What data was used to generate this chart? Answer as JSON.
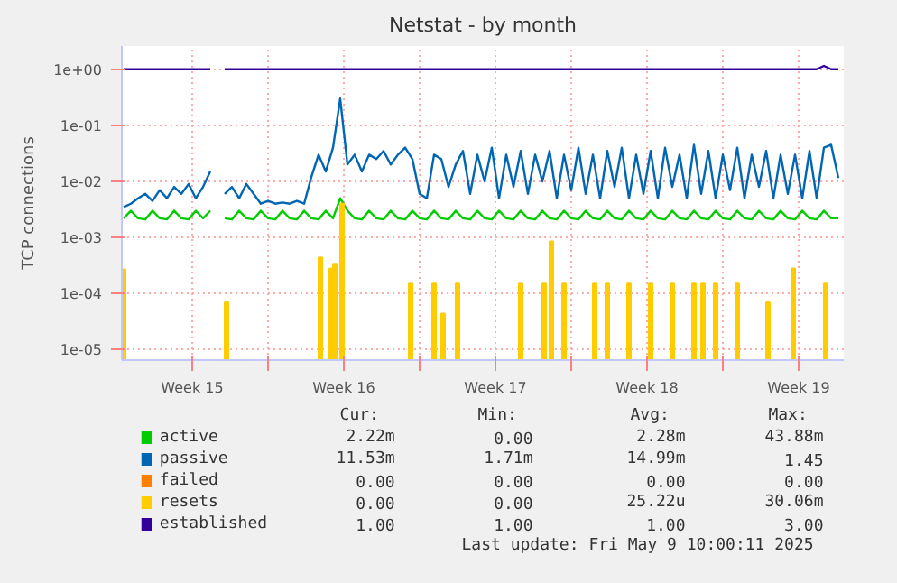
{
  "chart_data": {
    "type": "line",
    "title": "Netstat - by month",
    "ylabel": "TCP connections",
    "log": true,
    "grid": true,
    "legend": "bottom",
    "xlim": [
      "2025-04-06T06:00",
      "2025-05-09T14:00"
    ],
    "ylim": [
      6.5e-06,
      2.6
    ],
    "yticks": [
      {
        "value": 1e-05,
        "label": "1e-05"
      },
      {
        "value": 0.0001,
        "label": "1e-04"
      },
      {
        "value": 0.001,
        "label": "1e-03"
      },
      {
        "value": 0.01,
        "label": "1e-02"
      },
      {
        "value": 0.1,
        "label": "1e-01"
      },
      {
        "value": 1,
        "label": "1e+00"
      }
    ],
    "xticks": [
      {
        "value": "2025-04-09T12:00",
        "label": "Week 15"
      },
      {
        "value": "2025-04-13",
        "label": null
      },
      {
        "value": "2025-04-16T12:00",
        "label": "Week 16"
      },
      {
        "value": "2025-04-20",
        "label": null
      },
      {
        "value": "2025-04-23T12:00",
        "label": "Week 17"
      },
      {
        "value": "2025-04-27",
        "label": null
      },
      {
        "value": "2025-04-30T12:00",
        "label": "Week 18"
      },
      {
        "value": "2025-05-04",
        "label": null
      },
      {
        "value": "2025-05-07T12:00",
        "label": "Week 19"
      }
    ],
    "x": [
      "2025-04-06T08:00",
      "2025-04-06T16:00",
      "2025-04-07T00:00",
      "2025-04-07T08:00",
      "2025-04-07T16:00",
      "2025-04-08T00:00",
      "2025-04-08T08:00",
      "2025-04-08T16:00",
      "2025-04-09T00:00",
      "2025-04-09T08:00",
      "2025-04-09T16:00",
      "2025-04-10T00:00",
      "2025-04-10T08:00",
      "2025-04-10T16:00",
      "2025-04-11T00:00",
      "2025-04-11T08:00",
      "2025-04-11T16:00",
      "2025-04-12T00:00",
      "2025-04-12T08:00",
      "2025-04-12T16:00",
      "2025-04-13T00:00",
      "2025-04-13T08:00",
      "2025-04-13T16:00",
      "2025-04-14T00:00",
      "2025-04-14T08:00",
      "2025-04-14T16:00",
      "2025-04-15T00:00",
      "2025-04-15T08:00",
      "2025-04-15T16:00",
      "2025-04-16T00:00",
      "2025-04-16T08:00",
      "2025-04-16T16:00",
      "2025-04-17T00:00",
      "2025-04-17T08:00",
      "2025-04-17T16:00",
      "2025-04-18T00:00",
      "2025-04-18T08:00",
      "2025-04-18T16:00",
      "2025-04-19T00:00",
      "2025-04-19T08:00",
      "2025-04-19T16:00",
      "2025-04-20T00:00",
      "2025-04-20T08:00",
      "2025-04-20T16:00",
      "2025-04-21T00:00",
      "2025-04-21T08:00",
      "2025-04-21T16:00",
      "2025-04-22T00:00",
      "2025-04-22T08:00",
      "2025-04-22T16:00",
      "2025-04-23T00:00",
      "2025-04-23T08:00",
      "2025-04-23T16:00",
      "2025-04-24T00:00",
      "2025-04-24T08:00",
      "2025-04-24T16:00",
      "2025-04-25T00:00",
      "2025-04-25T08:00",
      "2025-04-25T16:00",
      "2025-04-26T00:00",
      "2025-04-26T08:00",
      "2025-04-26T16:00",
      "2025-04-27T00:00",
      "2025-04-27T08:00",
      "2025-04-27T16:00",
      "2025-04-28T00:00",
      "2025-04-28T08:00",
      "2025-04-28T16:00",
      "2025-04-29T00:00",
      "2025-04-29T08:00",
      "2025-04-29T16:00",
      "2025-04-30T00:00",
      "2025-04-30T08:00",
      "2025-04-30T16:00",
      "2025-05-01T00:00",
      "2025-05-01T08:00",
      "2025-05-01T16:00",
      "2025-05-02T00:00",
      "2025-05-02T08:00",
      "2025-05-02T16:00",
      "2025-05-03T00:00",
      "2025-05-03T08:00",
      "2025-05-03T16:00",
      "2025-05-04T00:00",
      "2025-05-04T08:00",
      "2025-05-04T16:00",
      "2025-05-05T00:00",
      "2025-05-05T08:00",
      "2025-05-05T16:00",
      "2025-05-06T00:00",
      "2025-05-06T08:00",
      "2025-05-06T16:00",
      "2025-05-07T00:00",
      "2025-05-07T08:00",
      "2025-05-07T16:00",
      "2025-05-08T00:00",
      "2025-05-08T08:00",
      "2025-05-08T16:00",
      "2025-05-09T00:00",
      "2025-05-09T08:00"
    ],
    "series": [
      {
        "name": "active",
        "color": "#00cc00",
        "values": [
          0.0022,
          0.003,
          0.0022,
          0.0021,
          0.003,
          0.0022,
          0.0021,
          0.003,
          0.0022,
          0.0021,
          0.003,
          0.0022,
          0.003,
          null,
          0.0022,
          0.0021,
          0.003,
          0.0022,
          0.0021,
          0.003,
          0.0022,
          0.0021,
          0.003,
          0.0022,
          0.0021,
          0.003,
          0.0022,
          0.0021,
          0.003,
          0.0022,
          0.005,
          0.003,
          0.0022,
          0.0021,
          0.003,
          0.0022,
          0.0021,
          0.003,
          0.0022,
          0.0021,
          0.003,
          0.0022,
          0.0021,
          0.003,
          0.0022,
          0.0021,
          0.003,
          0.0022,
          0.0021,
          0.003,
          0.0022,
          0.0021,
          0.003,
          0.0022,
          0.0021,
          0.003,
          0.0022,
          0.0021,
          0.003,
          0.0022,
          0.0021,
          0.003,
          0.0022,
          0.0021,
          0.003,
          0.0022,
          0.0021,
          0.003,
          0.0022,
          0.0021,
          0.003,
          0.0022,
          0.0021,
          0.003,
          0.0022,
          0.0021,
          0.003,
          0.0022,
          0.0021,
          0.003,
          0.0022,
          0.0021,
          0.003,
          0.0022,
          0.0021,
          0.003,
          0.0022,
          0.0021,
          0.003,
          0.0022,
          0.0021,
          0.003,
          0.0022,
          0.0021,
          0.003,
          0.0022,
          0.0021,
          0.003,
          0.0022,
          0.0022
        ]
      },
      {
        "name": "passive",
        "color": "#0066b3",
        "values": [
          0.0035,
          0.004,
          0.005,
          0.006,
          0.0045,
          0.007,
          0.005,
          0.008,
          0.006,
          0.009,
          0.005,
          0.008,
          0.015,
          null,
          0.006,
          0.008,
          0.005,
          0.009,
          0.006,
          0.004,
          0.0045,
          0.004,
          0.0042,
          0.004,
          0.0045,
          0.004,
          0.012,
          0.03,
          0.015,
          0.04,
          0.3,
          0.02,
          0.03,
          0.015,
          0.03,
          0.025,
          0.035,
          0.02,
          0.03,
          0.04,
          0.025,
          0.006,
          0.005,
          0.03,
          0.025,
          0.008,
          0.02,
          0.035,
          0.006,
          0.03,
          0.01,
          0.04,
          0.005,
          0.03,
          0.008,
          0.035,
          0.006,
          0.03,
          0.01,
          0.035,
          0.005,
          0.03,
          0.007,
          0.04,
          0.006,
          0.03,
          0.005,
          0.035,
          0.008,
          0.04,
          0.005,
          0.03,
          0.006,
          0.035,
          0.005,
          0.04,
          0.008,
          0.03,
          0.005,
          0.045,
          0.006,
          0.035,
          0.005,
          0.03,
          0.007,
          0.04,
          0.005,
          0.03,
          0.008,
          0.035,
          0.005,
          0.03,
          0.006,
          0.03,
          0.005,
          0.035,
          0.005,
          0.04,
          0.045,
          0.0115
        ]
      },
      {
        "name": "failed",
        "color": "#ff8000",
        "values": [
          null,
          null,
          null,
          null,
          null,
          null,
          null,
          null,
          null,
          null,
          null,
          null,
          null,
          null,
          null,
          null,
          null,
          null,
          null,
          null,
          null,
          null,
          null,
          null,
          null,
          null,
          null,
          null,
          null,
          null,
          null,
          null,
          null,
          null,
          null,
          null,
          null,
          null,
          null,
          null,
          null,
          null,
          null,
          null,
          null,
          null,
          null,
          null,
          null,
          null,
          null,
          null,
          null,
          null,
          null,
          null,
          null,
          null,
          null,
          null,
          null,
          null,
          null,
          null,
          null,
          null,
          null,
          null,
          null,
          null,
          null,
          null,
          null,
          null,
          null,
          null,
          null,
          null,
          null,
          null,
          null,
          null,
          null,
          null,
          null,
          null,
          null,
          null,
          null,
          null,
          null,
          null,
          null,
          null,
          null,
          null,
          null,
          null,
          null,
          null
        ]
      },
      {
        "name": "resets",
        "color": "#ffcc00",
        "type": "bar",
        "x": [
          "2025-04-06T08:00",
          "2025-04-11T02:00",
          "2025-04-15T10:00",
          "2025-04-15T22:00",
          "2025-04-16T02:00",
          "2025-04-16T10:00",
          "2025-04-19T14:00",
          "2025-04-20T16:00",
          "2025-04-21T02:00",
          "2025-04-21T18:00",
          "2025-04-24T16:00",
          "2025-04-25T18:00",
          "2025-04-26T02:00",
          "2025-04-26T16:00",
          "2025-04-28T02:00",
          "2025-04-28T16:00",
          "2025-04-29T16:00",
          "2025-04-30T16:00",
          "2025-05-01T16:00",
          "2025-05-02T16:00",
          "2025-05-03T02:00",
          "2025-05-03T16:00",
          "2025-05-04T16:00",
          "2025-05-06T02:00",
          "2025-05-07T06:00",
          "2025-05-08T18:00"
        ],
        "values": [
          0.00027,
          7e-05,
          0.00044,
          0.00028,
          0.00034,
          0.004,
          0.00015,
          0.00015,
          4.4e-05,
          0.00015,
          0.00015,
          0.00015,
          0.00085,
          0.00015,
          0.00015,
          0.00015,
          0.00015,
          0.00015,
          0.00015,
          0.00015,
          0.00015,
          0.00015,
          0.00015,
          7e-05,
          0.00028,
          0.00015
        ]
      },
      {
        "name": "established",
        "color": "#330099",
        "values": [
          1,
          1,
          1,
          1,
          1,
          1,
          1,
          1,
          1,
          1,
          1,
          1,
          1,
          null,
          1,
          1,
          1,
          1,
          1,
          1,
          1,
          1,
          1,
          1,
          1,
          1,
          1,
          1,
          1,
          1,
          1,
          1,
          1,
          1,
          1,
          1,
          1,
          1,
          1,
          1,
          1,
          1,
          1,
          1,
          1,
          1,
          1,
          1,
          1,
          1,
          1,
          1,
          1,
          1,
          1,
          1,
          1,
          1,
          1,
          1,
          1,
          1,
          1,
          1,
          1,
          1,
          1,
          1,
          1,
          1,
          1,
          1,
          1,
          1,
          1,
          1,
          1,
          1,
          1,
          1,
          1,
          1,
          1,
          1,
          1,
          1,
          1,
          1,
          1,
          1,
          1,
          1,
          1,
          1,
          1,
          1,
          1,
          1.15,
          1,
          1
        ]
      }
    ],
    "annotations": [
      "Cur:",
      "Min:",
      "Avg:",
      "Max:",
      "2.22m",
      "0.00",
      "2.28m",
      "43.88m",
      "11.53m",
      "1.71m",
      "14.99m",
      "1.45",
      "0.00",
      "0.00",
      "0.00",
      "0.00",
      "0.00",
      "0.00",
      "25.22u",
      "30.06m",
      "1.00",
      "1.00",
      "1.00",
      "3.00",
      "Last update: Fri May  9 10:00:11 2025"
    ]
  }
}
